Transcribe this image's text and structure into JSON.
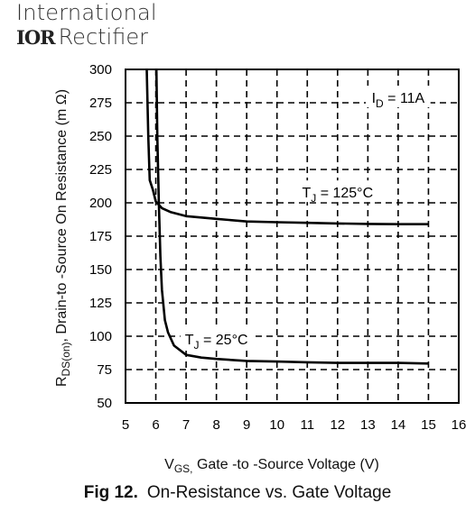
{
  "brand": {
    "line1": "International",
    "logo": "IOR",
    "line2": "Rectifier"
  },
  "chart_data": {
    "type": "line",
    "xlabel_main": "V",
    "xlabel_sub": "GS,",
    "xlabel_rest": " Gate -to -Source Voltage  (V)",
    "ylabel_main": "R",
    "ylabel_sub": "DS(on)",
    "ylabel_rest": ",  Drain-to -Source On Resistance (m Ω)",
    "xlim": [
      5,
      16
    ],
    "ylim": [
      50,
      300
    ],
    "x_ticks": [
      5,
      6,
      7,
      8,
      9,
      10,
      11,
      12,
      13,
      14,
      15,
      16
    ],
    "y_ticks": [
      50,
      75,
      100,
      125,
      150,
      175,
      200,
      225,
      250,
      275,
      300
    ],
    "grid": true,
    "annotations": [
      {
        "name": "id-label",
        "main": "I",
        "sub": "D",
        "rest": " = 11A",
        "x": 14.0,
        "y": 279
      },
      {
        "name": "tj125-label",
        "main": "T",
        "sub": "J",
        "rest": " = 125°C",
        "x": 12.0,
        "y": 208
      },
      {
        "name": "tj25-label",
        "main": "T",
        "sub": "J",
        "rest": " = 25°C",
        "x": 8.0,
        "y": 98
      }
    ],
    "series": [
      {
        "label": "TJ = 125°C",
        "x": [
          5.7,
          5.75,
          5.8,
          5.9,
          6.0,
          6.2,
          6.5,
          7.0,
          8.0,
          9.0,
          10.0,
          11.0,
          12.0,
          13.0,
          14.0,
          15.0
        ],
        "y": [
          300,
          250,
          217,
          210,
          201,
          196,
          193,
          190,
          188,
          186,
          185.5,
          185,
          184.5,
          184.2,
          184,
          184
        ]
      },
      {
        "label": "TJ = 25°C",
        "x": [
          6.02,
          6.05,
          6.1,
          6.15,
          6.2,
          6.3,
          6.4,
          6.6,
          7.0,
          7.5,
          8.0,
          9.0,
          10.0,
          11.0,
          12.0,
          13.0,
          14.0,
          15.0
        ],
        "y": [
          300,
          250,
          200,
          160,
          135,
          112,
          103,
          93,
          86,
          84,
          83,
          81.5,
          81,
          80.5,
          80,
          80,
          80,
          79.5
        ]
      }
    ]
  },
  "caption": {
    "fig": "Fig 12.",
    "text": "On-Resistance vs. Gate Voltage"
  }
}
